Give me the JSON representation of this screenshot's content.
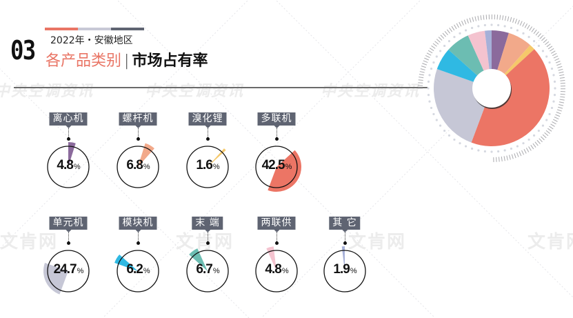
{
  "header": {
    "section_number": "03",
    "subtitle": "2022年・安徽地区",
    "title_part1": "各产品类别",
    "title_separator": "|",
    "title_part2": "市场占有率",
    "accent_bars": [
      "#e97565",
      "#c8c9d6",
      "#5f6472"
    ]
  },
  "watermarks": {
    "top": "中央空调资讯",
    "bottom": "文肯网"
  },
  "colors": {
    "label_bg": "#5f6472",
    "accent": "#e97565",
    "line": "#6a6a6a"
  },
  "chart_data": {
    "type": "pie",
    "title": "各产品类别 | 市场占有率",
    "subtitle": "2022年・安徽地区",
    "unit": "%",
    "categories": [
      "离心机",
      "螺杆机",
      "溴化锂",
      "多联机",
      "单元机",
      "模块机",
      "末端",
      "两联供",
      "其它"
    ],
    "values": [
      4.8,
      6.8,
      1.6,
      42.5,
      24.7,
      6.2,
      6.7,
      4.8,
      1.9
    ],
    "colors": [
      "#8b6a9c",
      "#f2a98a",
      "#f5c86a",
      "#ec7565",
      "#c6c7d6",
      "#2fb9e3",
      "#6cbdb2",
      "#f4c3cf",
      "#a6b0d8"
    ],
    "display_labels": [
      "离心机",
      "螺杆机",
      "溴化锂",
      "多联机",
      "单元机",
      "模块机",
      "末 端",
      "两联供",
      "其 它"
    ],
    "value_labels": [
      "4.8",
      "6.8",
      "1.6",
      "42.5",
      "24.7",
      "6.2",
      "6.7",
      "4.8",
      "1.9"
    ],
    "donut": {
      "inner_hole": true,
      "start_angle_deg": 0,
      "direction": "clockwise"
    }
  },
  "items": [
    {
      "label": "离心机",
      "value": "4.8",
      "unit": "%"
    },
    {
      "label": "螺杆机",
      "value": "6.8",
      "unit": "%"
    },
    {
      "label": "溴化锂",
      "value": "1.6",
      "unit": "%"
    },
    {
      "label": "多联机",
      "value": "42.5",
      "unit": "%"
    },
    {
      "label": "单元机",
      "value": "24.7",
      "unit": "%"
    },
    {
      "label": "模块机",
      "value": "6.2",
      "unit": "%"
    },
    {
      "label": "末 端",
      "value": "6.7",
      "unit": "%"
    },
    {
      "label": "两联供",
      "value": "4.8",
      "unit": "%"
    },
    {
      "label": "其 它",
      "value": "1.9",
      "unit": "%"
    }
  ]
}
